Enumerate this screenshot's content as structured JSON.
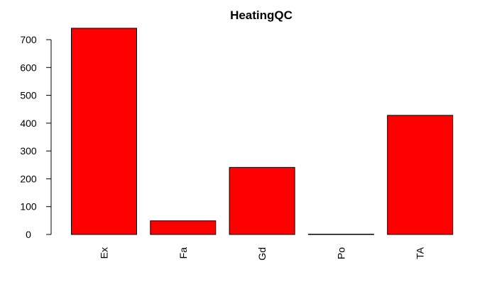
{
  "chart_data": {
    "type": "bar",
    "title": "HeatingQC",
    "xlabel": "",
    "ylabel": "",
    "categories": [
      "Ex",
      "Fa",
      "Gd",
      "Po",
      "TA"
    ],
    "values": [
      741,
      49,
      241,
      1,
      428
    ],
    "ylim": [
      0,
      700
    ],
    "yticks": [
      "0",
      "100",
      "200",
      "300",
      "400",
      "500",
      "600",
      "700"
    ],
    "bar_color": "#ff0000",
    "grid": false,
    "legend": "none"
  }
}
